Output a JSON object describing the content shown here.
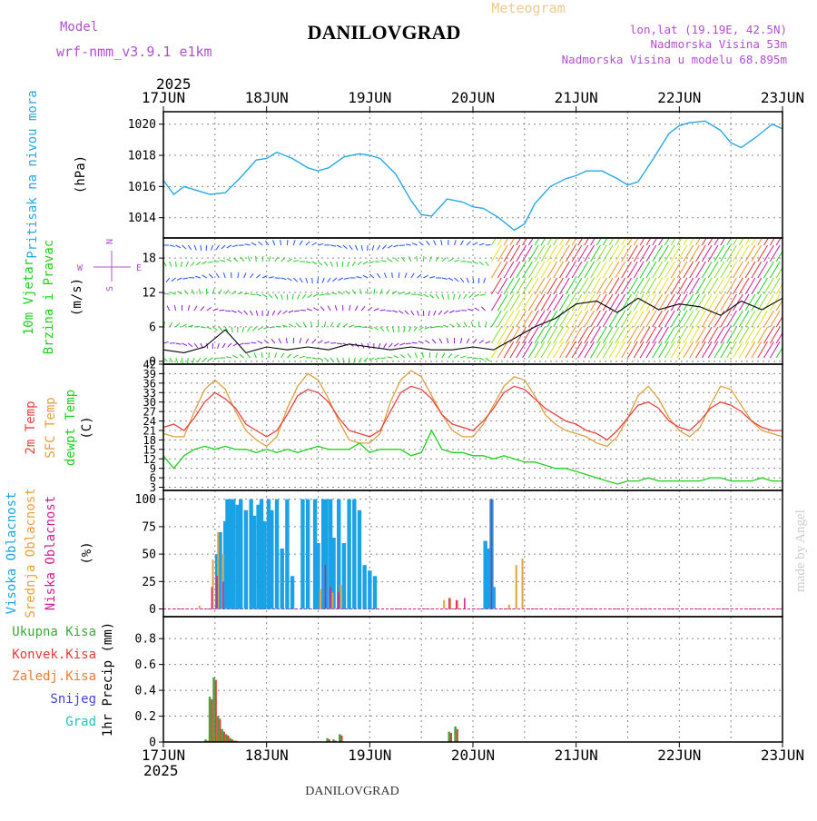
{
  "header": {
    "model_label": "Model",
    "model_name": "wrf-nmm_v3.9.1  e1km",
    "title": "DANILOVGRAD",
    "subtitle": "Meteogram",
    "coords": "lon,lat (19.19E, 42.5N)",
    "elevation": "Nadmorska Visina 53m",
    "model_elevation": "Nadmorska Visina u modelu 68.895m",
    "year_top": "2025",
    "year_bottom": "2025",
    "footer": "DANILOVGRAD",
    "credit": "made by Angel"
  },
  "colors": {
    "pressure": "#29a8e6",
    "t2m": "#e8423f",
    "sfc": "#e0a040",
    "dewpt": "#1fd11f",
    "high_cloud": "#19a3e6",
    "mid_cloud": "#e6a23a",
    "low_cloud": "#d81b8a",
    "total_precip": "#3ca83c",
    "conv_precip": "#e83a3a",
    "frz_precip": "#f07a30",
    "snow": "#4444dd",
    "hail": "#20c0c0",
    "model_label": "#b050d0",
    "title": "#000000",
    "subtitle": "#f0c890",
    "grid": "#888888",
    "windline": "#000000"
  },
  "chart_data": [
    {
      "type": "line",
      "name": "pressure",
      "ylabel1": "Pritisak na nivou mora",
      "ylabel2": "(hPa)",
      "ticks": [
        1014,
        1016,
        1018,
        1020
      ],
      "ylim": [
        1012.7,
        1020.8
      ],
      "x_days": [
        0,
        0.1,
        0.2,
        0.3,
        0.45,
        0.6,
        0.75,
        0.9,
        1.0,
        1.1,
        1.25,
        1.4,
        1.5,
        1.6,
        1.75,
        1.9,
        2.0,
        2.1,
        2.25,
        2.4,
        2.5,
        2.6,
        2.75,
        2.9,
        3.0,
        3.1,
        3.25,
        3.4,
        3.5,
        3.6,
        3.75,
        3.9,
        4.0,
        4.1,
        4.25,
        4.4,
        4.5,
        4.6,
        4.75,
        4.9,
        5.0,
        5.1,
        5.25,
        5.4,
        5.5,
        5.6,
        5.75,
        5.9,
        6.0
      ],
      "values": [
        1016.4,
        1015.5,
        1016.0,
        1015.8,
        1015.5,
        1015.6,
        1016.6,
        1017.7,
        1017.8,
        1018.2,
        1017.8,
        1017.2,
        1017.0,
        1017.2,
        1017.9,
        1018.1,
        1018.0,
        1017.8,
        1016.8,
        1015.1,
        1014.2,
        1014.1,
        1015.2,
        1015.0,
        1014.7,
        1014.6,
        1014.0,
        1013.2,
        1013.6,
        1014.9,
        1016.0,
        1016.5,
        1016.7,
        1017.0,
        1017.0,
        1016.5,
        1016.1,
        1016.3,
        1017.8,
        1019.4,
        1019.9,
        1020.1,
        1020.2,
        1019.6,
        1018.8,
        1018.5,
        1019.2,
        1020.0,
        1019.7
      ]
    },
    {
      "type": "line",
      "name": "wind",
      "ylabel1": "10m Vjetar",
      "ylabel2": "Brzina i Pravac",
      "ylabel3": "(m/s)",
      "compass_n": "N",
      "compass_e": "E",
      "compass_w": "W",
      "compass_s": "S",
      "ticks": [
        0,
        6,
        12,
        18
      ],
      "ylim": [
        -0.5,
        21.5
      ],
      "x_days": [
        0,
        0.2,
        0.4,
        0.6,
        0.8,
        1.0,
        1.2,
        1.4,
        1.6,
        1.8,
        2.0,
        2.2,
        2.4,
        2.6,
        2.8,
        3.0,
        3.2,
        3.4,
        3.6,
        3.8,
        4.0,
        4.2,
        4.4,
        4.6,
        4.8,
        5.0,
        5.2,
        5.4,
        5.6,
        5.8,
        6.0
      ],
      "speed": [
        2.0,
        1.5,
        2.5,
        5.5,
        1.5,
        2.5,
        2.0,
        2.5,
        2.0,
        3.0,
        2.5,
        2.0,
        2.5,
        2.0,
        2.0,
        2.5,
        2.0,
        4.0,
        6.0,
        7.5,
        10.0,
        10.5,
        8.5,
        11.0,
        9.0,
        10.0,
        9.5,
        8.0,
        10.5,
        9.0,
        11.0
      ]
    },
    {
      "type": "line",
      "name": "temperature",
      "ylabel1": "2m Temp",
      "ylabel2": "SFC Temp",
      "ylabel3": "dewpt Temp",
      "ylabel4": "(C)",
      "ticks": [
        3,
        6,
        9,
        12,
        15,
        18,
        21,
        24,
        27,
        30,
        33,
        36,
        39,
        42
      ],
      "ylim": [
        2,
        42
      ],
      "x_days": [
        0,
        0.1,
        0.2,
        0.3,
        0.4,
        0.5,
        0.6,
        0.7,
        0.8,
        0.9,
        1.0,
        1.1,
        1.2,
        1.3,
        1.4,
        1.5,
        1.6,
        1.7,
        1.8,
        1.9,
        2.0,
        2.1,
        2.2,
        2.3,
        2.4,
        2.5,
        2.6,
        2.7,
        2.8,
        2.9,
        3.0,
        3.1,
        3.2,
        3.3,
        3.4,
        3.5,
        3.6,
        3.7,
        3.8,
        3.9,
        4.0,
        4.1,
        4.2,
        4.3,
        4.4,
        4.5,
        4.6,
        4.7,
        4.8,
        4.9,
        5.0,
        5.1,
        5.2,
        5.3,
        5.4,
        5.5,
        5.6,
        5.7,
        5.8,
        5.9,
        6.0
      ],
      "t2m": [
        22,
        23,
        21,
        25,
        30,
        33,
        31,
        28,
        23,
        21,
        19,
        21,
        26,
        32,
        34,
        33,
        30,
        25,
        21,
        20,
        19,
        21,
        27,
        33,
        35,
        34,
        31,
        26,
        23,
        22,
        21,
        24,
        28,
        33,
        35,
        34,
        31,
        28,
        26,
        24,
        23,
        21,
        20,
        18,
        21,
        25,
        29,
        30,
        28,
        24,
        22,
        21,
        24,
        28,
        30,
        29,
        27,
        24,
        22,
        21,
        21
      ],
      "sfc": [
        20,
        19,
        19,
        27,
        34,
        37,
        34,
        27,
        21,
        18,
        16,
        19,
        28,
        35,
        39,
        37,
        31,
        24,
        18,
        17,
        17,
        20,
        30,
        37,
        40,
        38,
        32,
        26,
        21,
        19,
        19,
        23,
        29,
        35,
        38,
        37,
        32,
        26,
        23,
        21,
        20,
        19,
        17,
        16,
        19,
        25,
        32,
        35,
        31,
        25,
        21,
        19,
        22,
        29,
        35,
        34,
        29,
        24,
        21,
        20,
        19
      ],
      "dewpt": [
        13,
        9,
        13,
        15,
        16,
        15,
        16,
        15,
        15,
        14,
        15,
        14,
        15,
        14,
        15,
        16,
        15,
        15,
        15,
        17,
        14,
        15,
        15,
        15,
        13,
        14,
        21,
        15,
        14,
        14,
        13,
        13,
        12,
        13,
        12,
        11,
        11,
        10,
        9,
        9,
        8,
        7,
        6,
        5,
        4,
        5,
        5,
        6,
        5,
        5,
        5,
        5,
        5,
        6,
        6,
        5,
        5,
        5,
        6,
        5,
        5
      ]
    },
    {
      "type": "bar",
      "name": "cloud",
      "ylabel1": "Visoka Oblacnost",
      "ylabel2": "Srednja Oblacnost",
      "ylabel3": "Niska Oblacnost",
      "ylabel4": "(%)",
      "ticks": [
        0,
        25,
        50,
        75,
        100
      ],
      "ylim": [
        -7,
        108
      ],
      "high_x": [
        0.52,
        0.55,
        0.6,
        0.62,
        0.65,
        0.68,
        0.72,
        0.75,
        0.8,
        0.85,
        0.88,
        0.92,
        0.95,
        0.98,
        1.02,
        1.05,
        1.1,
        1.15,
        1.2,
        1.25,
        1.35,
        1.4,
        1.47,
        1.5,
        1.55,
        1.58,
        1.62,
        1.65,
        1.7,
        1.75,
        1.8,
        1.85,
        1.9,
        1.95,
        2.0,
        2.05,
        3.12,
        3.15,
        3.18,
        3.2
      ],
      "high_v": [
        50,
        70,
        80,
        100,
        100,
        100,
        95,
        100,
        90,
        100,
        85,
        95,
        100,
        80,
        100,
        90,
        100,
        55,
        100,
        30,
        100,
        100,
        100,
        60,
        100,
        100,
        100,
        65,
        100,
        60,
        100,
        100,
        90,
        40,
        35,
        30,
        62,
        55,
        100,
        20
      ],
      "mid_x": [
        0.35,
        0.48,
        0.53,
        0.58,
        1.52,
        1.64,
        1.72,
        2.72,
        2.78,
        2.85,
        3.35,
        3.42,
        3.48
      ],
      "mid_v": [
        3,
        45,
        70,
        50,
        18,
        15,
        22,
        8,
        10,
        8,
        4,
        40,
        46
      ],
      "low_x": [
        0.45,
        0.5,
        0.56,
        1.55,
        1.6,
        1.68,
        2.75,
        2.82,
        2.9,
        3.16
      ],
      "low_v": [
        20,
        30,
        25,
        40,
        20,
        15,
        10,
        8,
        10,
        100
      ]
    },
    {
      "type": "bar",
      "name": "precip",
      "label_total": "Ukupna Kisa",
      "label_conv": "Konvek.Kisa",
      "label_frz": "Zaledj.Kisa",
      "label_snow": "Snijeg",
      "label_hail": "Grad",
      "ylabel": "1hr Precip (mm)",
      "ticks": [
        0,
        0.2,
        0.4,
        0.6,
        0.8
      ],
      "ticklabels": [
        "0",
        "0.2",
        "0.4",
        "0.6",
        "0.8"
      ],
      "ylim": [
        0,
        0.97
      ],
      "x_days": [
        0.42,
        0.46,
        0.5,
        0.54,
        0.58,
        0.62,
        0.66,
        0.7,
        1.6,
        1.66,
        1.72,
        2.78,
        2.84
      ],
      "total": [
        0.02,
        0.35,
        0.5,
        0.2,
        0.1,
        0.06,
        0.03,
        0.01,
        0.03,
        0.02,
        0.06,
        0.08,
        0.12
      ],
      "conv": [
        0.01,
        0.33,
        0.48,
        0.18,
        0.08,
        0.05,
        0.02,
        0.01,
        0.02,
        0.01,
        0.05,
        0.07,
        0.1
      ]
    }
  ],
  "x_axis": {
    "start": "2025-06-17",
    "end": "2025-06-23",
    "day_labels": [
      "17JUN",
      "18JUN",
      "19JUN",
      "20JUN",
      "21JUN",
      "22JUN",
      "23JUN"
    ]
  }
}
